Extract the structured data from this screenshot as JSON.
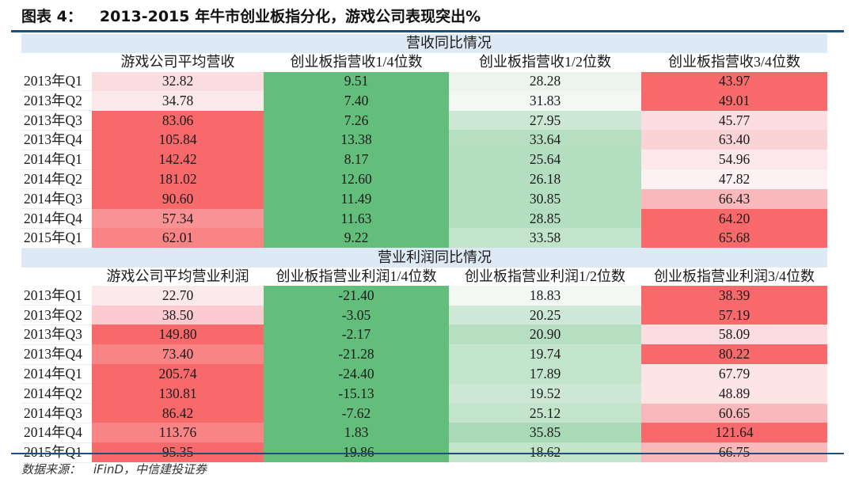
{
  "title": {
    "label": "图表 4：",
    "text": "2013-2015 年牛市创业板指分化，游戏公司表现突出%"
  },
  "sections": [
    {
      "band_title_left": "营收同",
      "band_title_right": "比情况",
      "headers": [
        "",
        "游戏公司平均营收",
        "创业板指营收1/4位数",
        "创业板指营收1/2位数",
        "创业板指营收3/4位数"
      ],
      "rows": [
        {
          "label": "2013年Q1",
          "values": [
            "32.82",
            "9.51",
            "28.28",
            "43.97"
          ],
          "colors": [
            "#fbdde0",
            "#63be7b",
            "#ebf5ee",
            "#f8696b"
          ]
        },
        {
          "label": "2013年Q2",
          "values": [
            "34.78",
            "7.40",
            "31.83",
            "49.01"
          ],
          "colors": [
            "#fce9ec",
            "#63be7b",
            "#f3f8f5",
            "#f8696b"
          ]
        },
        {
          "label": "2013年Q3",
          "values": [
            "83.06",
            "7.26",
            "27.95",
            "45.77"
          ],
          "colors": [
            "#f8696b",
            "#63be7b",
            "#cce8d5",
            "#fcdde1"
          ]
        },
        {
          "label": "2013年Q4",
          "values": [
            "105.84",
            "13.38",
            "33.64",
            "63.40"
          ],
          "colors": [
            "#f8696b",
            "#63be7b",
            "#b6dfc2",
            "#fad3d7"
          ]
        },
        {
          "label": "2014年Q1",
          "values": [
            "142.42",
            "8.17",
            "25.64",
            "54.96"
          ],
          "colors": [
            "#f8696b",
            "#63be7b",
            "#b3dec0",
            "#fce7ea"
          ]
        },
        {
          "label": "2014年Q2",
          "values": [
            "181.02",
            "12.60",
            "26.18",
            "47.82"
          ],
          "colors": [
            "#f8696b",
            "#63be7b",
            "#b3dec0",
            "#fdf1f3"
          ]
        },
        {
          "label": "2014年Q3",
          "values": [
            "90.60",
            "11.49",
            "30.85",
            "66.43"
          ],
          "colors": [
            "#f8696b",
            "#63be7b",
            "#b3dec0",
            "#f9b9bc"
          ]
        },
        {
          "label": "2014年Q4",
          "values": [
            "57.34",
            "11.63",
            "28.85",
            "64.20"
          ],
          "colors": [
            "#f99294",
            "#63be7b",
            "#b3dec0",
            "#f8696b"
          ]
        },
        {
          "label": "2015年Q1",
          "values": [
            "62.01",
            "9.22",
            "33.58",
            "65.68"
          ],
          "colors": [
            "#f98486",
            "#63be7b",
            "#c2e4cb",
            "#f8696b"
          ]
        }
      ]
    },
    {
      "band_title_left": "营业利润同",
      "band_title_right": "比情况",
      "headers": [
        "",
        "游戏公司平均营业利润",
        "创业板指营业利润1/4位数",
        "创业板指营业利润1/2位数",
        "创业板指营业利润3/4位数"
      ],
      "rows": [
        {
          "label": "2013年Q1",
          "values": [
            "22.70",
            "-21.40",
            "18.83",
            "38.39"
          ],
          "colors": [
            "#fce9ec",
            "#63be7b",
            "#f3f8f5",
            "#f8696b"
          ]
        },
        {
          "label": "2013年Q2",
          "values": [
            "38.50",
            "-3.05",
            "20.25",
            "57.19"
          ],
          "colors": [
            "#fbcbcf",
            "#63be7b",
            "#cde8d6",
            "#f8696b"
          ]
        },
        {
          "label": "2013年Q3",
          "values": [
            "149.80",
            "-2.17",
            "20.90",
            "58.09"
          ],
          "colors": [
            "#f8696b",
            "#63be7b",
            "#b6dfc2",
            "#fcdde1"
          ]
        },
        {
          "label": "2013年Q4",
          "values": [
            "73.40",
            "-21.28",
            "19.74",
            "80.22"
          ],
          "colors": [
            "#f98486",
            "#63be7b",
            "#c2e4cb",
            "#f8696b"
          ]
        },
        {
          "label": "2014年Q1",
          "values": [
            "205.74",
            "-24.40",
            "17.89",
            "67.79"
          ],
          "colors": [
            "#f8696b",
            "#63be7b",
            "#c2e4cb",
            "#fce4e7"
          ]
        },
        {
          "label": "2014年Q2",
          "values": [
            "130.81",
            "-15.13",
            "19.52",
            "48.89"
          ],
          "colors": [
            "#f8696b",
            "#63be7b",
            "#cce8d5",
            "#fce4e7"
          ]
        },
        {
          "label": "2014年Q3",
          "values": [
            "86.42",
            "-7.62",
            "25.12",
            "60.65"
          ],
          "colors": [
            "#f8696b",
            "#63be7b",
            "#c2e4cb",
            "#f9b9bc"
          ]
        },
        {
          "label": "2014年Q4",
          "values": [
            "113.76",
            "1.83",
            "35.85",
            "121.64"
          ],
          "colors": [
            "#f98486",
            "#63be7b",
            "#a9d9b7",
            "#f8696b"
          ]
        },
        {
          "label": "2015年Q1",
          "values": [
            "95.35",
            "-19.86",
            "18.62",
            "66.75"
          ],
          "colors": [
            "#f8696b",
            "#63be7b",
            "#c2e4cb",
            "#f9b9bc"
          ]
        }
      ]
    }
  ],
  "footer": {
    "label": "数据来源：",
    "source": "iFinD，中信建投证券"
  }
}
